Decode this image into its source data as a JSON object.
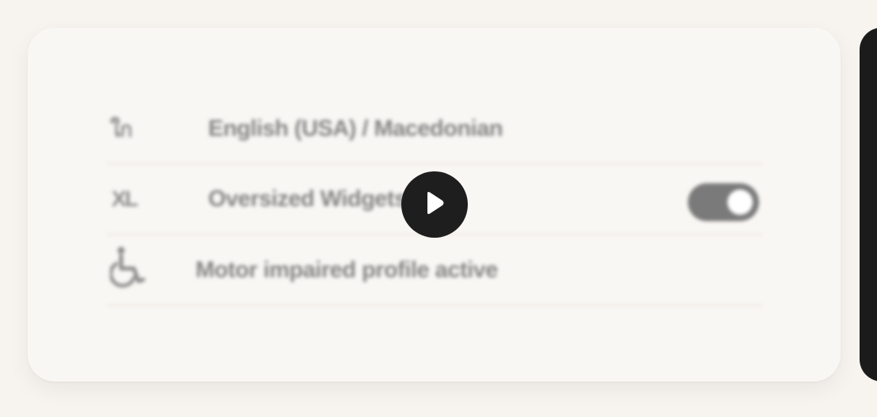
{
  "settings_card": {
    "rows": [
      {
        "badge": "ใก",
        "label": "English (USA) / Macedonian",
        "icon": null,
        "toggle": null
      },
      {
        "badge": "XL",
        "label": "Oversized Widgets",
        "icon": null,
        "toggle": {
          "on": true
        }
      },
      {
        "badge": null,
        "label": "Motor impaired profile active",
        "icon": "wheelchair-icon",
        "toggle": null
      }
    ]
  },
  "media": {
    "play_button": {
      "icon": "play-icon"
    }
  },
  "colors": {
    "background": "#f7f4ef",
    "card": "#f9f7f4",
    "text": "#838383",
    "toggle_track": "#7a7a7a",
    "play_button": "#1e1e1e",
    "side_panel": "#1b1b1b"
  }
}
